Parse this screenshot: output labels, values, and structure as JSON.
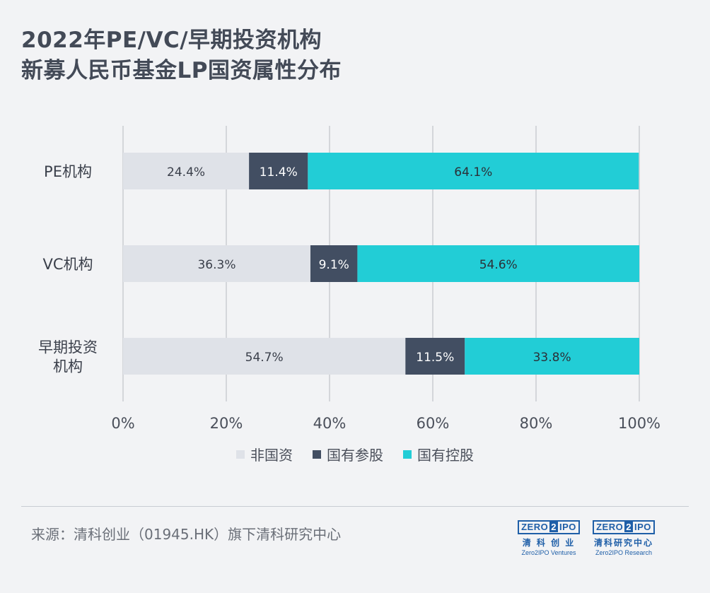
{
  "title": {
    "line1": "2022年PE/VC/早期投资机构",
    "line2": "新募人民币基金LP国资属性分布"
  },
  "chart_data": {
    "type": "bar",
    "orientation": "horizontal",
    "stacked": true,
    "categories": [
      [
        "PE机构"
      ],
      [
        "VC机构"
      ],
      [
        "早期投资",
        "机构"
      ]
    ],
    "series": [
      {
        "name": "非国资",
        "values": [
          24.4,
          36.3,
          54.7
        ],
        "labels": [
          "24.4%",
          "36.3%",
          "54.7%"
        ],
        "color": "#dfe2e8",
        "label_color": "#3a3f4a"
      },
      {
        "name": "国有参股",
        "values": [
          11.4,
          9.1,
          11.5
        ],
        "labels": [
          "11.4%",
          "9.1%",
          "11.5%"
        ],
        "color": "#424e62",
        "label_color": "#ffffff"
      },
      {
        "name": "国有控股",
        "values": [
          64.1,
          54.6,
          33.8
        ],
        "labels": [
          "64.1%",
          "54.6%",
          "33.8%"
        ],
        "color": "#22cdd6",
        "label_color": "#2b3038"
      }
    ],
    "xlim": [
      0,
      100
    ],
    "xticks": [
      "0%",
      "20%",
      "40%",
      "60%",
      "80%",
      "100%"
    ],
    "grid": true,
    "legend_position": "bottom"
  },
  "source": "来源：清科创业（01945.HK）旗下清科研究中心",
  "logos": [
    {
      "left": "ZERO",
      "two": "2",
      "right": "IPO",
      "cn": "清 科 创 业",
      "en": "Zero2IPO Ventures"
    },
    {
      "left": "ZERO",
      "two": "2",
      "right": "IPO",
      "cn": "清科研究中心",
      "en": "Zero2IPO Research"
    }
  ]
}
